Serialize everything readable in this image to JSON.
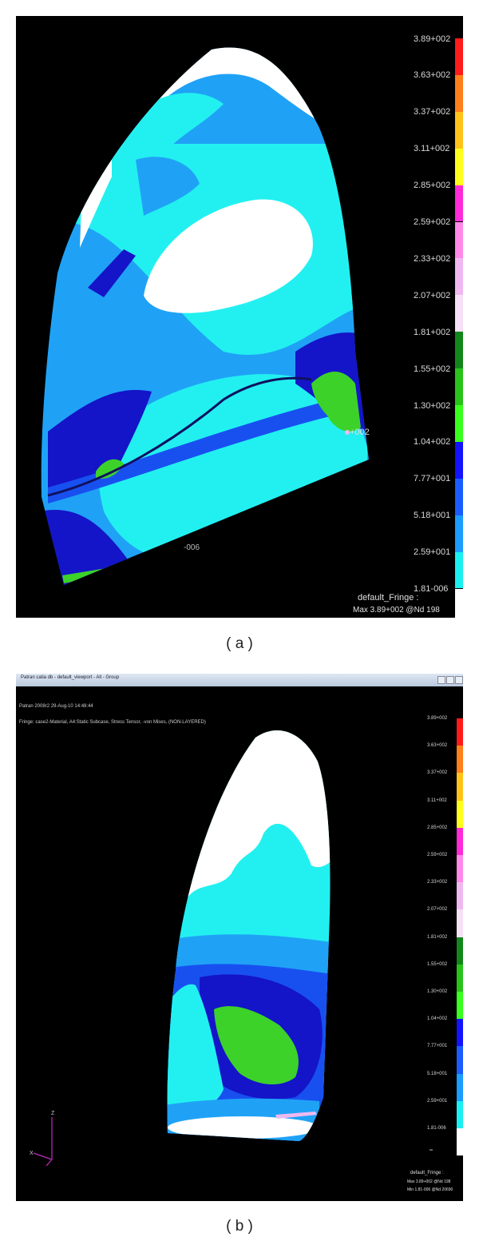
{
  "figure_a": {
    "caption": "( a )",
    "scale_values": [
      "3.89+002",
      "3.63+002",
      "3.37+002",
      "3.11+002",
      "2.85+002",
      "2.59+002",
      "2.33+002",
      "2.07+002",
      "1.81+002",
      "1.55+002",
      "1.30+002",
      "1.04+002",
      "7.77+001",
      "5.18+001",
      "2.59+001",
      "1.81-006"
    ],
    "fringe_label": "default_Fringe :",
    "fringe_max": "Max 3.89+002 @Nd 198",
    "marker_max": "+002",
    "marker_min": "-006"
  },
  "figure_b": {
    "caption": "( b )",
    "window_title": "Patran catia db - default_viewport - All - Group",
    "header_line1": "Patran 2008r2 29-Aug-10 14:48:44",
    "header_line2": "Fringe: case2-Material, A4:Static Subcase, Stress Tensor, -von Mises, (NON-LAYERED)",
    "scale_values": [
      "3.89+002",
      "3.63+002",
      "3.37+002",
      "3.11+002",
      "2.85+002",
      "2.59+002",
      "2.33+002",
      "2.07+002",
      "1.81+002",
      "1.55+002",
      "1.30+002",
      "1.04+002",
      "7.77+001",
      "5.18+001",
      "2.59+001",
      "1.81-006"
    ],
    "fringe_label": "default_Fringe :",
    "fringe_max": "Max 3.89+002 @Nd 198",
    "fringe_min": "Min 1.81-006 @Nd 20690",
    "axis_x": "X",
    "axis_z": "Z"
  },
  "colors": {
    "scale": [
      "#ff1b1b",
      "#ff7f1b",
      "#ffc21b",
      "#ffff1b",
      "#ff2bd8",
      "#ff88e8",
      "#f0b8f0",
      "#f6e0f6",
      "#13861b",
      "#29c21b",
      "#38ff1b",
      "#1313ff",
      "#1b5cff",
      "#1b9cff",
      "#1bf0f0",
      "#ffffff"
    ],
    "stress_white": "#ffffff",
    "stress_cyan": "#22f0f0",
    "stress_light_blue": "#1fa2f6",
    "stress_blue": "#1850f0",
    "stress_dark_blue": "#1414c8",
    "stress_green": "#3cd22a"
  }
}
